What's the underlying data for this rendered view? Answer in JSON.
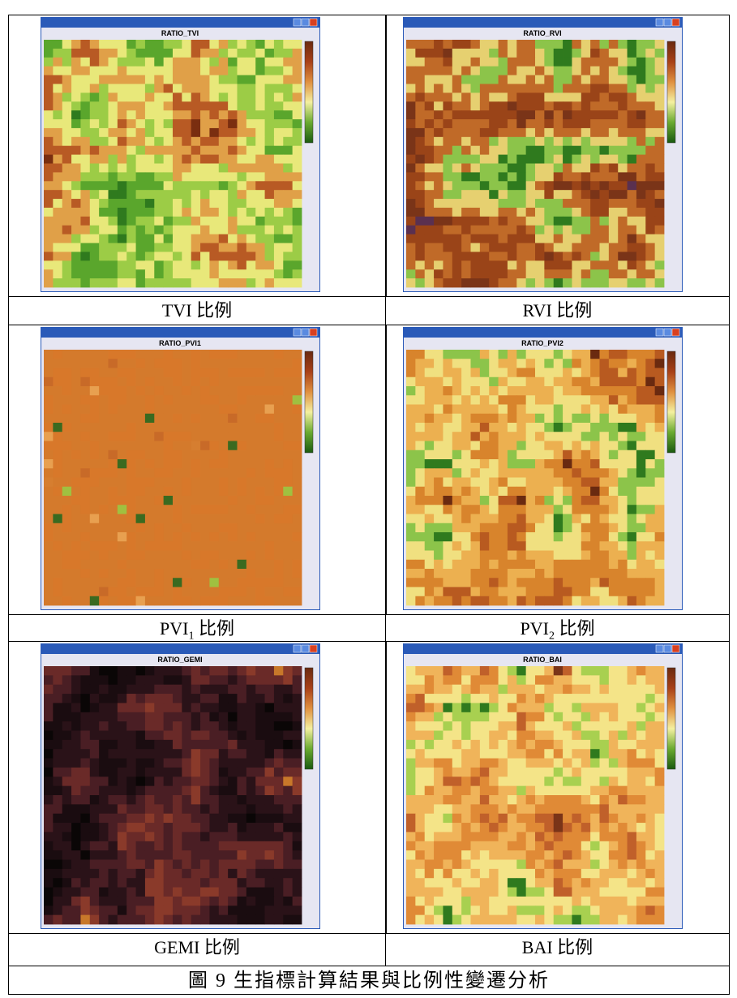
{
  "panels": [
    {
      "title": "RATIO_TVI",
      "caption": "TVI 比例"
    },
    {
      "title": "RATIO_RVI",
      "caption": "RVI 比例"
    },
    {
      "title": "RATIO_PVI1",
      "caption": {
        "name": "PVI",
        "sub": "1",
        "suffix": " 比例"
      }
    },
    {
      "title": "RATIO_PVI2",
      "caption": {
        "name": "PVI",
        "sub": "2",
        "suffix": " 比例"
      }
    },
    {
      "title": "RATIO_GEMI",
      "caption": "GEMI 比例"
    },
    {
      "title": "RATIO_BAI",
      "caption": "BAI 比例"
    }
  ],
  "footer": "圖 9 生指標計算結果與比例性變遷分析"
}
